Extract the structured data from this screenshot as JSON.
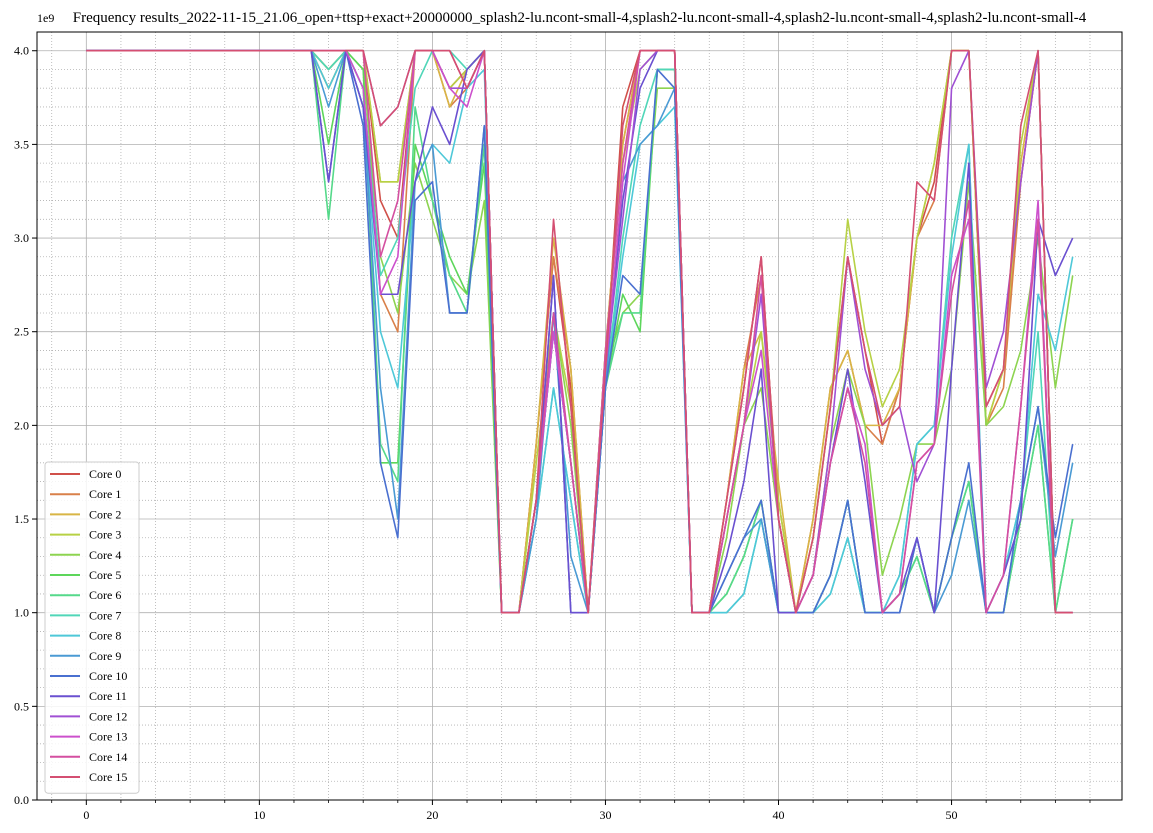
{
  "chart_data": {
    "type": "line",
    "title": "Frequency results_2022-11-15_21.06_open+ttsp+exact+20000000_splash2-lu.ncont-small-4,splash2-lu.ncont-small-4,splash2-lu.ncont-small-4,splash2-lu.ncont-small-4",
    "xlabel": "",
    "ylabel": "",
    "y_scale_label": "1e9",
    "xlim": [
      -2.85,
      59.85
    ],
    "ylim": [
      0,
      4.1
    ],
    "x_ticks": [
      0,
      10,
      20,
      30,
      40,
      50
    ],
    "y_ticks": [
      0.0,
      0.5,
      1.0,
      1.5,
      2.0,
      2.5,
      3.0,
      3.5,
      4.0
    ],
    "x_tick_labels": [
      "0",
      "10",
      "20",
      "30",
      "40",
      "50"
    ],
    "y_tick_labels": [
      "0.0",
      "0.5",
      "1.0",
      "1.5",
      "2.0",
      "2.5",
      "3.0",
      "3.5",
      "4.0"
    ],
    "grid": true,
    "minor_grid": true,
    "legend_position": "lower-left",
    "x": [
      0,
      1,
      2,
      3,
      4,
      5,
      6,
      7,
      8,
      9,
      10,
      11,
      12,
      13,
      14,
      15,
      16,
      17,
      18,
      19,
      20,
      21,
      22,
      23,
      24,
      25,
      26,
      27,
      28,
      29,
      30,
      31,
      32,
      33,
      34,
      35,
      36,
      37,
      38,
      39,
      40,
      41,
      42,
      43,
      44,
      45,
      46,
      47,
      48,
      49,
      50,
      51,
      52,
      53,
      54,
      55,
      56,
      57
    ],
    "series": [
      {
        "name": "Core 0",
        "color": "#d0504a",
        "values": [
          4,
          4,
          4,
          4,
          4,
          4,
          4,
          4,
          4,
          4,
          4,
          4,
          4,
          4,
          3.9,
          4,
          4,
          3.2,
          3.0,
          4,
          4,
          3.8,
          3.9,
          4,
          1,
          1,
          1.9,
          2.9,
          2.2,
          1,
          2.3,
          3.7,
          4,
          4,
          4,
          1,
          1,
          1.6,
          2.2,
          2.9,
          1.5,
          1,
          1.4,
          2.1,
          2.9,
          2.4,
          1.9,
          2.2,
          3.0,
          3.3,
          4,
          4,
          2.1,
          2.3,
          3.3,
          4,
          1,
          1
        ]
      },
      {
        "name": "Core 1",
        "color": "#d9804a",
        "values": [
          4,
          4,
          4,
          4,
          4,
          4,
          4,
          4,
          4,
          4,
          4,
          4,
          4,
          4,
          3.8,
          4,
          4,
          2.7,
          2.5,
          4,
          4,
          3.7,
          3.8,
          4,
          1,
          1,
          1.9,
          2.9,
          2.3,
          1,
          2.4,
          3.5,
          4,
          4,
          4,
          1,
          1,
          1.6,
          2.3,
          2.8,
          1.6,
          1,
          1.5,
          2.2,
          2.4,
          2.0,
          1.9,
          2.2,
          3.0,
          3.2,
          4,
          4,
          2.0,
          2.2,
          3.3,
          4,
          1,
          1
        ]
      },
      {
        "name": "Core 2",
        "color": "#d8b545",
        "values": [
          4,
          4,
          4,
          4,
          4,
          4,
          4,
          4,
          4,
          4,
          4,
          4,
          4,
          4,
          3.8,
          4,
          4,
          3.3,
          3.3,
          4,
          4,
          3.7,
          3.9,
          4,
          1,
          1,
          1.9,
          3.0,
          2.3,
          1,
          2.4,
          3.5,
          4,
          4,
          4,
          1,
          1,
          1.6,
          2.3,
          2.5,
          1.7,
          1,
          1.5,
          2.2,
          2.4,
          2.0,
          2.0,
          2.2,
          3.0,
          3.4,
          4,
          4,
          2.0,
          2.3,
          3.4,
          4,
          1,
          1
        ]
      },
      {
        "name": "Core 3",
        "color": "#b7d145",
        "values": [
          4,
          4,
          4,
          4,
          4,
          4,
          4,
          4,
          4,
          4,
          4,
          4,
          4,
          4,
          3.9,
          4,
          4,
          3.3,
          3.3,
          4,
          4,
          3.8,
          3.9,
          4,
          1,
          1,
          1.8,
          2.6,
          2.1,
          1,
          2.4,
          3.4,
          3.9,
          4,
          4,
          1,
          1,
          1.5,
          2.0,
          2.5,
          1.6,
          1,
          1.4,
          2.1,
          3.1,
          2.5,
          2.1,
          2.3,
          3.0,
          3.4,
          4,
          4,
          2.0,
          2.3,
          3.5,
          4,
          1,
          1
        ]
      },
      {
        "name": "Core 4",
        "color": "#8dd450",
        "values": [
          4,
          4,
          4,
          4,
          4,
          4,
          4,
          4,
          4,
          4,
          4,
          4,
          4,
          4,
          3.9,
          4,
          3.9,
          2.9,
          2.6,
          3.4,
          3.1,
          2.8,
          2.7,
          3.2,
          1,
          1,
          1.6,
          2.6,
          2.0,
          1,
          2.3,
          2.6,
          2.7,
          3.8,
          3.8,
          1,
          1,
          1.4,
          2.0,
          2.2,
          1.5,
          1,
          1.2,
          1.9,
          2.3,
          2.0,
          1.2,
          1.5,
          1.9,
          1.9,
          2.3,
          3.3,
          2.0,
          2.1,
          2.4,
          3.0,
          2.2,
          2.8
        ]
      },
      {
        "name": "Core 5",
        "color": "#5dd65b",
        "values": [
          4,
          4,
          4,
          4,
          4,
          4,
          4,
          4,
          4,
          4,
          4,
          4,
          4,
          4,
          3.5,
          4,
          3.9,
          1.8,
          1.8,
          3.5,
          3.2,
          2.9,
          2.7,
          3.4,
          1,
          1,
          1.6,
          2.5,
          1.8,
          1,
          2.2,
          2.7,
          2.5,
          3.9,
          3.9,
          1,
          1,
          1.1,
          1.3,
          1.6,
          1,
          1,
          1,
          1.2,
          1.6,
          1.0,
          1,
          1.1,
          1.3,
          1,
          1.4,
          1.7,
          1,
          1,
          1.5,
          2.0,
          1,
          1.5
        ]
      },
      {
        "name": "Core 6",
        "color": "#55d98a",
        "values": [
          4,
          4,
          4,
          4,
          4,
          4,
          4,
          4,
          4,
          4,
          4,
          4,
          4,
          4,
          3.1,
          4,
          3.8,
          1.9,
          1.7,
          3.7,
          3.2,
          2.8,
          2.6,
          3.5,
          1,
          1,
          1.6,
          2.5,
          1.8,
          1,
          2.2,
          2.6,
          2.6,
          3.9,
          3.9,
          1,
          1,
          1.1,
          1.3,
          1.6,
          1,
          1,
          1,
          1.2,
          1.6,
          1.0,
          1,
          1.1,
          1.3,
          1,
          1.4,
          1.7,
          1,
          1,
          1.5,
          2.0,
          1,
          1.5
        ]
      },
      {
        "name": "Core 7",
        "color": "#50d6b8",
        "values": [
          4,
          4,
          4,
          4,
          4,
          4,
          4,
          4,
          4,
          4,
          4,
          4,
          4,
          4,
          3.9,
          4,
          3.8,
          2.8,
          3.0,
          3.8,
          4,
          4,
          3.9,
          4,
          1,
          1,
          1.5,
          2.2,
          1.6,
          1,
          2.2,
          3.0,
          3.6,
          3.9,
          3.9,
          1,
          1,
          1,
          1.1,
          1.5,
          1,
          1,
          1,
          1.1,
          1.4,
          1,
          1,
          1.2,
          1.9,
          2.0,
          3.0,
          3.5,
          1,
          1.2,
          1.6,
          2.5,
          1,
          1
        ]
      },
      {
        "name": "Core 8",
        "color": "#4ec8d8",
        "values": [
          4,
          4,
          4,
          4,
          4,
          4,
          4,
          4,
          4,
          4,
          4,
          4,
          4,
          4,
          3.8,
          4,
          3.7,
          2.5,
          2.2,
          3.3,
          3.5,
          3.4,
          3.8,
          3.9,
          1,
          1,
          1.5,
          2.2,
          1.6,
          1,
          2.2,
          2.9,
          3.5,
          3.6,
          3.7,
          1,
          1,
          1,
          1.1,
          1.5,
          1,
          1,
          1,
          1.1,
          1.4,
          1,
          1,
          1.2,
          1.9,
          2.0,
          2.9,
          3.5,
          1,
          1.2,
          1.6,
          2.7,
          2.4,
          2.9
        ]
      },
      {
        "name": "Core 9",
        "color": "#4a9ad4",
        "values": [
          4,
          4,
          4,
          4,
          4,
          4,
          4,
          4,
          4,
          4,
          4,
          4,
          4,
          4,
          3.7,
          4,
          3.7,
          2.2,
          1.5,
          3.3,
          3.5,
          2.6,
          2.6,
          3.6,
          1,
          1,
          1.5,
          2.6,
          1.3,
          1,
          2.2,
          3.3,
          3.5,
          3.6,
          3.8,
          1,
          1,
          1.2,
          1.4,
          1.5,
          1,
          1,
          1,
          1.2,
          1.6,
          1.0,
          1,
          1,
          1.4,
          1,
          1.2,
          1.6,
          1,
          1,
          1.6,
          2.1,
          1.3,
          1.8
        ]
      },
      {
        "name": "Core 10",
        "color": "#4a70d0",
        "values": [
          4,
          4,
          4,
          4,
          4,
          4,
          4,
          4,
          4,
          4,
          4,
          4,
          4,
          4,
          3.3,
          4,
          3.6,
          1.8,
          1.4,
          3.2,
          3.3,
          2.6,
          2.6,
          3.6,
          1,
          1,
          1.6,
          2.8,
          1.0,
          1,
          2.2,
          2.8,
          2.7,
          3.9,
          3.8,
          1,
          1,
          1.2,
          1.4,
          1.6,
          1,
          1,
          1,
          1.2,
          1.6,
          1.0,
          1,
          1,
          1.4,
          1,
          1.4,
          1.8,
          1,
          1,
          1.6,
          2.1,
          1.4,
          1.9
        ]
      },
      {
        "name": "Core 11",
        "color": "#6a50d0",
        "values": [
          4,
          4,
          4,
          4,
          4,
          4,
          4,
          4,
          4,
          4,
          4,
          4,
          4,
          4,
          3.3,
          4,
          3.7,
          2.7,
          2.7,
          3.3,
          3.7,
          3.5,
          3.9,
          4,
          1,
          1,
          1.6,
          2.8,
          1.0,
          1,
          2.3,
          3.2,
          3.8,
          4,
          4,
          1,
          1,
          1.3,
          1.7,
          2.3,
          1,
          1,
          1.2,
          1.8,
          2.3,
          1.7,
          1,
          1.1,
          1.4,
          1,
          2.3,
          3.4,
          1,
          1.2,
          1.5,
          3.1,
          2.8,
          3.0
        ]
      },
      {
        "name": "Core 12",
        "color": "#a050d4",
        "values": [
          4,
          4,
          4,
          4,
          4,
          4,
          4,
          4,
          4,
          4,
          4,
          4,
          4,
          4,
          4,
          4,
          4,
          3.6,
          3.7,
          4,
          4,
          3.8,
          3.8,
          4,
          1,
          1,
          1.6,
          2.5,
          1.8,
          1,
          2.3,
          3.1,
          3.9,
          4,
          4,
          1,
          1,
          1.5,
          2.0,
          2.7,
          1.5,
          1,
          1.2,
          1.9,
          2.9,
          2.3,
          2.0,
          2.1,
          1.7,
          1.9,
          3.8,
          4,
          2.2,
          2.5,
          3.3,
          4,
          1,
          1
        ]
      },
      {
        "name": "Core 13",
        "color": "#cc50cc",
        "values": [
          4,
          4,
          4,
          4,
          4,
          4,
          4,
          4,
          4,
          4,
          4,
          4,
          4,
          4,
          4,
          4,
          3.8,
          2.7,
          2.9,
          4,
          4,
          3.8,
          3.7,
          4,
          1,
          1,
          1.6,
          2.5,
          1.8,
          1,
          2.3,
          3.3,
          4,
          4,
          4,
          1,
          1,
          1.5,
          2.0,
          2.4,
          1.5,
          1,
          1.2,
          1.8,
          2.2,
          1.9,
          1.0,
          1.1,
          1.8,
          1.9,
          2.8,
          3.1,
          1,
          1.2,
          2.1,
          3.2,
          1,
          1
        ]
      },
      {
        "name": "Core 14",
        "color": "#d44fa0",
        "values": [
          4,
          4,
          4,
          4,
          4,
          4,
          4,
          4,
          4,
          4,
          4,
          4,
          4,
          4,
          4,
          4,
          4,
          2.9,
          3.2,
          4,
          4,
          4,
          3.8,
          4,
          1,
          1,
          1.6,
          2.6,
          1.8,
          1,
          2.4,
          3.4,
          4,
          4,
          4,
          1,
          1,
          1.5,
          2.0,
          2.8,
          1.5,
          1,
          1.2,
          1.8,
          2.2,
          1.8,
          1.0,
          1.1,
          1.8,
          1.9,
          2.7,
          3.2,
          1,
          1.2,
          2.1,
          3.1,
          1,
          1
        ]
      },
      {
        "name": "Core 15",
        "color": "#d44f72",
        "values": [
          4,
          4,
          4,
          4,
          4,
          4,
          4,
          4,
          4,
          4,
          4,
          4,
          4,
          4,
          4,
          4,
          4,
          3.6,
          3.7,
          4,
          4,
          4,
          3.8,
          4,
          1,
          1,
          1.6,
          3.1,
          2.1,
          1,
          2.3,
          3.6,
          4,
          4,
          4,
          1,
          1,
          1.6,
          2.2,
          2.9,
          1.5,
          1,
          1.4,
          2.1,
          2.9,
          2.4,
          2.0,
          2.1,
          3.3,
          3.2,
          4,
          4,
          2.1,
          2.3,
          3.6,
          4,
          1,
          1
        ]
      }
    ]
  }
}
